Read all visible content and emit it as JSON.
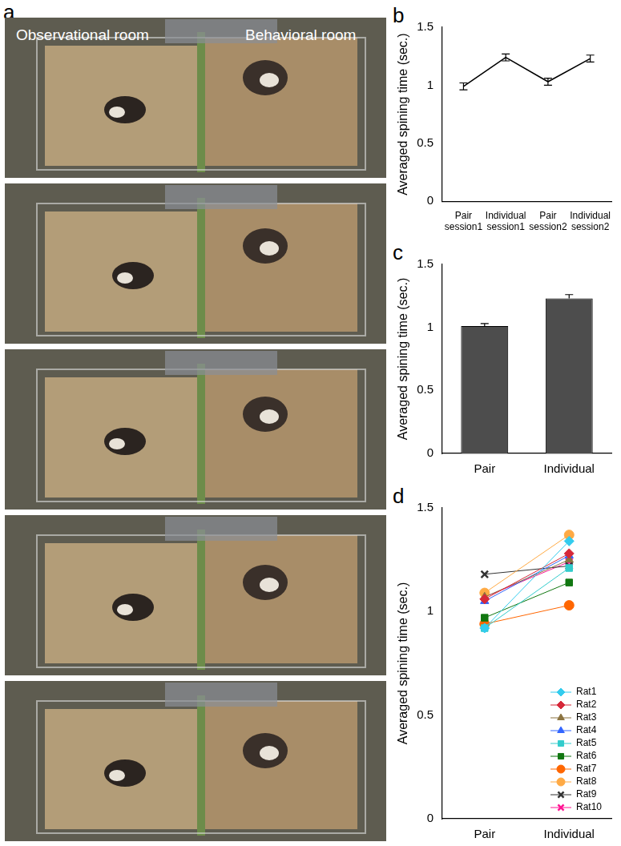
{
  "panels": [
    {
      "panel_label": "a",
      "type": "photo_sequence",
      "frames": 5,
      "room_labels": [
        "Observational room",
        "Behavioral room"
      ]
    }
  ],
  "chart_data": [
    {
      "panel_label": "b",
      "type": "line",
      "y_label": "Averaged spining time (sec.)",
      "categories": [
        "Pair session1",
        "Individual session1",
        "Pair session2",
        "Individual session2"
      ],
      "values": [
        0.99,
        1.24,
        1.03,
        1.23
      ],
      "errors": [
        0.03,
        0.03,
        0.03,
        0.03
      ],
      "color": "#000000",
      "ylim": [
        0,
        1.5
      ],
      "yticks": [
        0,
        0.5,
        1,
        1.5
      ],
      "grid": false
    },
    {
      "panel_label": "c",
      "type": "bar",
      "y_label": "Averaged spining time (sec.)",
      "categories": [
        "Pair",
        "Individual"
      ],
      "values": [
        1.01,
        1.23
      ],
      "errors": [
        0.02,
        0.03
      ],
      "color": "#4d4d4d",
      "ylim": [
        0,
        1.5
      ],
      "yticks": [
        0,
        0.5,
        1,
        1.5
      ],
      "grid": false
    },
    {
      "panel_label": "d",
      "type": "line",
      "y_label": "Averaged spining time (sec.)",
      "categories": [
        "Pair",
        "Individual"
      ],
      "series": [
        {
          "name": "Rat1",
          "color": "#33ccee",
          "marker": "diamond",
          "values": [
            0.92,
            1.34
          ]
        },
        {
          "name": "Rat2",
          "color": "#d62839",
          "marker": "diamond",
          "values": [
            1.06,
            1.28
          ]
        },
        {
          "name": "Rat3",
          "color": "#8b7340",
          "marker": "triangle",
          "values": [
            1.07,
            1.25
          ]
        },
        {
          "name": "Rat4",
          "color": "#3366ff",
          "marker": "triangle",
          "values": [
            1.05,
            1.27
          ]
        },
        {
          "name": "Rat5",
          "color": "#33cccc",
          "marker": "square",
          "values": [
            0.92,
            1.21
          ]
        },
        {
          "name": "Rat6",
          "color": "#117711",
          "marker": "square",
          "values": [
            0.97,
            1.14
          ]
        },
        {
          "name": "Rat7",
          "color": "#ff6600",
          "marker": "circle",
          "values": [
            0.94,
            1.03
          ]
        },
        {
          "name": "Rat8",
          "color": "#ffaa44",
          "marker": "circle",
          "values": [
            1.09,
            1.37
          ]
        },
        {
          "name": "Rat9",
          "color": "#333333",
          "marker": "x",
          "values": [
            1.18,
            1.22
          ]
        },
        {
          "name": "Rat10",
          "color": "#ff1493",
          "marker": "x",
          "values": [
            1.07,
            1.24
          ]
        }
      ],
      "legend": "lower right",
      "ylim": [
        0,
        1.5
      ],
      "yticks": [
        0,
        0.5,
        1,
        1.5
      ],
      "grid": false
    }
  ]
}
